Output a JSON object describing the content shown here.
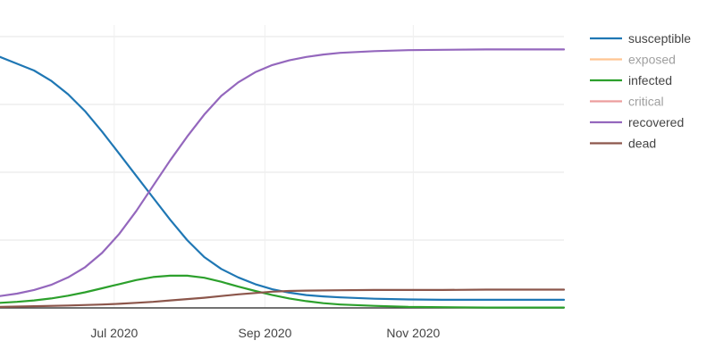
{
  "chart_data": {
    "type": "line",
    "x_axis": {
      "kind": "date",
      "ticks": [
        {
          "value": "2020-07-01",
          "label": "Jul 2020"
        },
        {
          "value": "2020-09-01",
          "label": "Sep 2020"
        },
        {
          "value": "2020-11-01",
          "label": "Nov 2020"
        }
      ],
      "range": [
        "2020-05-15",
        "2021-01-02"
      ]
    },
    "y_axis": {
      "range": [
        0,
        1
      ],
      "tick_labels_visible": false,
      "grid": true,
      "grid_values": [
        0.2,
        0.4,
        0.6,
        0.8
      ]
    },
    "legend": {
      "placement": "right",
      "entries": [
        "susceptible",
        "exposed",
        "infected",
        "critical",
        "recovered",
        "dead"
      ]
    },
    "series": [
      {
        "name": "susceptible",
        "color": "#1f77b4",
        "visible": true,
        "points": [
          [
            "2020-05-15",
            0.74
          ],
          [
            "2020-05-22",
            0.72
          ],
          [
            "2020-05-29",
            0.7
          ],
          [
            "2020-06-05",
            0.67
          ],
          [
            "2020-06-12",
            0.63
          ],
          [
            "2020-06-19",
            0.58
          ],
          [
            "2020-06-26",
            0.52
          ],
          [
            "2020-07-03",
            0.455
          ],
          [
            "2020-07-10",
            0.39
          ],
          [
            "2020-07-17",
            0.325
          ],
          [
            "2020-07-24",
            0.26
          ],
          [
            "2020-07-31",
            0.2
          ],
          [
            "2020-08-07",
            0.15
          ],
          [
            "2020-08-14",
            0.115
          ],
          [
            "2020-08-21",
            0.09
          ],
          [
            "2020-08-28",
            0.07
          ],
          [
            "2020-09-04",
            0.055
          ],
          [
            "2020-09-11",
            0.045
          ],
          [
            "2020-09-18",
            0.038
          ],
          [
            "2020-09-25",
            0.034
          ],
          [
            "2020-10-02",
            0.031
          ],
          [
            "2020-10-16",
            0.027
          ],
          [
            "2020-10-30",
            0.025
          ],
          [
            "2020-11-13",
            0.024
          ],
          [
            "2020-12-01",
            0.024
          ],
          [
            "2020-12-15",
            0.024
          ],
          [
            "2021-01-02",
            0.024
          ]
        ]
      },
      {
        "name": "exposed",
        "color": "#ff7f0e",
        "visible": false,
        "points": []
      },
      {
        "name": "infected",
        "color": "#2ca02c",
        "visible": true,
        "points": [
          [
            "2020-05-15",
            0.015
          ],
          [
            "2020-05-22",
            0.018
          ],
          [
            "2020-05-29",
            0.022
          ],
          [
            "2020-06-05",
            0.028
          ],
          [
            "2020-06-12",
            0.036
          ],
          [
            "2020-06-19",
            0.046
          ],
          [
            "2020-06-26",
            0.058
          ],
          [
            "2020-07-03",
            0.07
          ],
          [
            "2020-07-10",
            0.082
          ],
          [
            "2020-07-17",
            0.091
          ],
          [
            "2020-07-24",
            0.095
          ],
          [
            "2020-07-31",
            0.095
          ],
          [
            "2020-08-07",
            0.089
          ],
          [
            "2020-08-14",
            0.077
          ],
          [
            "2020-08-21",
            0.063
          ],
          [
            "2020-08-28",
            0.05
          ],
          [
            "2020-09-04",
            0.038
          ],
          [
            "2020-09-11",
            0.028
          ],
          [
            "2020-09-18",
            0.02
          ],
          [
            "2020-09-25",
            0.014
          ],
          [
            "2020-10-02",
            0.01
          ],
          [
            "2020-10-16",
            0.006
          ],
          [
            "2020-10-30",
            0.003
          ],
          [
            "2020-11-13",
            0.002
          ],
          [
            "2020-12-01",
            0.001
          ],
          [
            "2021-01-02",
            0.001
          ]
        ]
      },
      {
        "name": "critical",
        "color": "#d62728",
        "visible": false,
        "points": []
      },
      {
        "name": "recovered",
        "color": "#9467bd",
        "visible": true,
        "points": [
          [
            "2020-05-15",
            0.035
          ],
          [
            "2020-05-22",
            0.042
          ],
          [
            "2020-05-29",
            0.053
          ],
          [
            "2020-06-05",
            0.068
          ],
          [
            "2020-06-12",
            0.09
          ],
          [
            "2020-06-19",
            0.12
          ],
          [
            "2020-06-26",
            0.162
          ],
          [
            "2020-07-03",
            0.218
          ],
          [
            "2020-07-10",
            0.285
          ],
          [
            "2020-07-17",
            0.36
          ],
          [
            "2020-07-24",
            0.435
          ],
          [
            "2020-07-31",
            0.505
          ],
          [
            "2020-08-07",
            0.57
          ],
          [
            "2020-08-14",
            0.625
          ],
          [
            "2020-08-21",
            0.665
          ],
          [
            "2020-08-28",
            0.695
          ],
          [
            "2020-09-04",
            0.716
          ],
          [
            "2020-09-11",
            0.73
          ],
          [
            "2020-09-18",
            0.74
          ],
          [
            "2020-09-25",
            0.747
          ],
          [
            "2020-10-02",
            0.752
          ],
          [
            "2020-10-16",
            0.757
          ],
          [
            "2020-10-30",
            0.76
          ],
          [
            "2020-11-13",
            0.761
          ],
          [
            "2020-12-01",
            0.762
          ],
          [
            "2020-12-15",
            0.762
          ],
          [
            "2021-01-02",
            0.762
          ]
        ]
      },
      {
        "name": "dead",
        "color": "#8c564b",
        "visible": true,
        "points": [
          [
            "2020-05-15",
            0.003
          ],
          [
            "2020-05-29",
            0.005
          ],
          [
            "2020-06-12",
            0.007
          ],
          [
            "2020-06-26",
            0.01
          ],
          [
            "2020-07-03",
            0.012
          ],
          [
            "2020-07-10",
            0.015
          ],
          [
            "2020-07-17",
            0.018
          ],
          [
            "2020-07-24",
            0.022
          ],
          [
            "2020-07-31",
            0.026
          ],
          [
            "2020-08-07",
            0.03
          ],
          [
            "2020-08-14",
            0.035
          ],
          [
            "2020-08-21",
            0.04
          ],
          [
            "2020-08-28",
            0.044
          ],
          [
            "2020-09-04",
            0.048
          ],
          [
            "2020-09-11",
            0.05
          ],
          [
            "2020-09-18",
            0.051
          ],
          [
            "2020-10-02",
            0.052
          ],
          [
            "2020-10-16",
            0.053
          ],
          [
            "2020-10-30",
            0.053
          ],
          [
            "2020-11-13",
            0.053
          ],
          [
            "2020-12-01",
            0.054
          ],
          [
            "2021-01-02",
            0.054
          ]
        ]
      }
    ]
  }
}
